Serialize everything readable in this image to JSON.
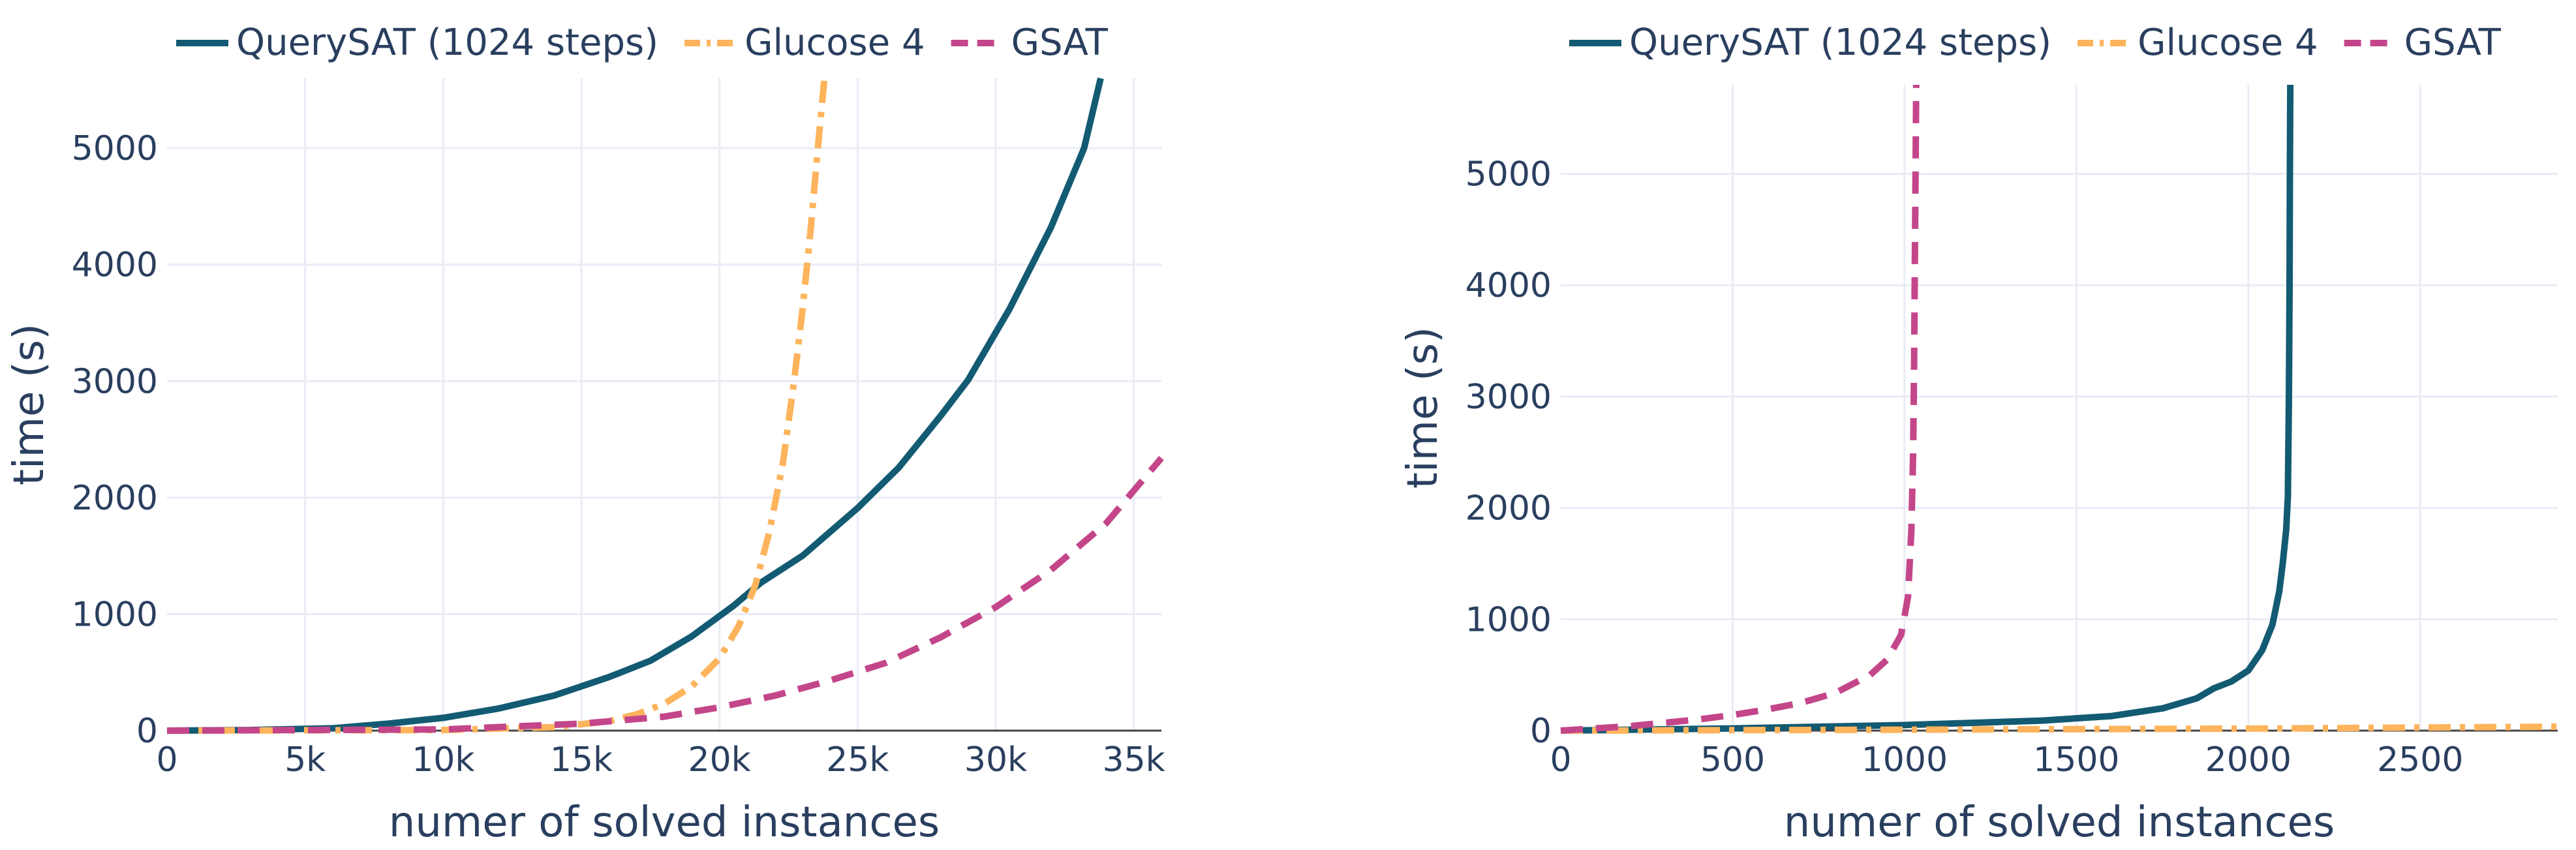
{
  "colors": {
    "querysat": "#135a73",
    "glucose": "#fdb45c",
    "gsat": "#c4468a",
    "text": "#2a3f5f",
    "grid": "#e9ecf5"
  },
  "chart_data": [
    {
      "type": "line",
      "xlabel": "numer of solved instances",
      "ylabel": "time (s)",
      "xlim": [
        0,
        36000
      ],
      "ylim": [
        0,
        5600
      ],
      "grid": true,
      "legend_position": "top",
      "x_ticks": [
        {
          "value": 0,
          "label": "0"
        },
        {
          "value": 5000,
          "label": "5k"
        },
        {
          "value": 10000,
          "label": "10k"
        },
        {
          "value": 15000,
          "label": "15k"
        },
        {
          "value": 20000,
          "label": "20k"
        },
        {
          "value": 25000,
          "label": "25k"
        },
        {
          "value": 30000,
          "label": "30k"
        },
        {
          "value": 35000,
          "label": "35k"
        }
      ],
      "y_ticks": [
        {
          "value": 0,
          "label": "0"
        },
        {
          "value": 1000,
          "label": "1000"
        },
        {
          "value": 2000,
          "label": "2000"
        },
        {
          "value": 3000,
          "label": "3000"
        },
        {
          "value": 4000,
          "label": "4000"
        },
        {
          "value": 5000,
          "label": "5000"
        }
      ],
      "series": [
        {
          "name": "QuerySAT (1024 steps)",
          "color": "#135a73",
          "dash": "solid",
          "x": [
            0,
            3000,
            6000,
            8000,
            10000,
            12000,
            14000,
            16000,
            17500,
            19000,
            20500,
            21500,
            23000,
            25000,
            26500,
            28000,
            29000,
            30500,
            32000,
            33200,
            33800
          ],
          "y": [
            0,
            5,
            20,
            60,
            110,
            190,
            300,
            460,
            600,
            810,
            1070,
            1270,
            1500,
            1910,
            2260,
            2700,
            3010,
            3620,
            4320,
            5000,
            5600
          ]
        },
        {
          "name": "Glucose 4",
          "color": "#fdb45c",
          "dash": "dashdot",
          "x": [
            0,
            10000,
            14000,
            16000,
            17000,
            18000,
            19000,
            20000,
            20700,
            21300,
            21800,
            22300,
            22700,
            23000,
            23300,
            23600,
            23800
          ],
          "y": [
            0,
            5,
            30,
            80,
            140,
            230,
            380,
            620,
            900,
            1250,
            1700,
            2300,
            3000,
            3600,
            4300,
            5100,
            5600
          ]
        },
        {
          "name": "GSAT",
          "color": "#c4468a",
          "dash": "dash",
          "x": [
            0,
            10000,
            15000,
            18000,
            20000,
            22000,
            24000,
            26000,
            28000,
            30000,
            32000,
            34000,
            36000
          ],
          "y": [
            0,
            10,
            60,
            120,
            200,
            300,
            430,
            580,
            800,
            1060,
            1380,
            1780,
            2340
          ]
        }
      ]
    },
    {
      "type": "line",
      "xlabel": "numer of solved instances",
      "ylabel": "time (s)",
      "xlim": [
        0,
        2900
      ],
      "ylim": [
        0,
        5800
      ],
      "grid": true,
      "legend_position": "top",
      "x_ticks": [
        {
          "value": 0,
          "label": "0"
        },
        {
          "value": 500,
          "label": "500"
        },
        {
          "value": 1000,
          "label": "1000"
        },
        {
          "value": 1500,
          "label": "1500"
        },
        {
          "value": 2000,
          "label": "2000"
        },
        {
          "value": 2500,
          "label": "2500"
        }
      ],
      "y_ticks": [
        {
          "value": 0,
          "label": "0"
        },
        {
          "value": 1000,
          "label": "1000"
        },
        {
          "value": 2000,
          "label": "2000"
        },
        {
          "value": 3000,
          "label": "3000"
        },
        {
          "value": 4000,
          "label": "4000"
        },
        {
          "value": 5000,
          "label": "5000"
        }
      ],
      "series": [
        {
          "name": "QuerySAT (1024 steps)",
          "color": "#135a73",
          "dash": "solid",
          "x": [
            0,
            500,
            1000,
            1400,
            1600,
            1750,
            1850,
            1900,
            1950,
            2000,
            2040,
            2070,
            2090,
            2100,
            2110,
            2115,
            2118,
            2120,
            2121,
            2122
          ],
          "y": [
            0,
            20,
            50,
            90,
            130,
            200,
            290,
            380,
            440,
            540,
            720,
            950,
            1250,
            1500,
            1800,
            2100,
            3000,
            4000,
            5000,
            5800
          ]
        },
        {
          "name": "Glucose 4",
          "color": "#fdb45c",
          "dash": "dashdot",
          "x": [
            0,
            1000,
            2000,
            2900
          ],
          "y": [
            0,
            8,
            18,
            35
          ]
        },
        {
          "name": "GSAT",
          "color": "#c4468a",
          "dash": "dash",
          "x": [
            0,
            200,
            400,
            500,
            600,
            700,
            800,
            900,
            950,
            990,
            1010,
            1020,
            1025,
            1028,
            1030,
            1032,
            1034
          ],
          "y": [
            0,
            40,
            100,
            140,
            190,
            250,
            340,
            500,
            640,
            860,
            1200,
            1800,
            2500,
            3300,
            4200,
            5000,
            5800
          ]
        }
      ]
    }
  ]
}
